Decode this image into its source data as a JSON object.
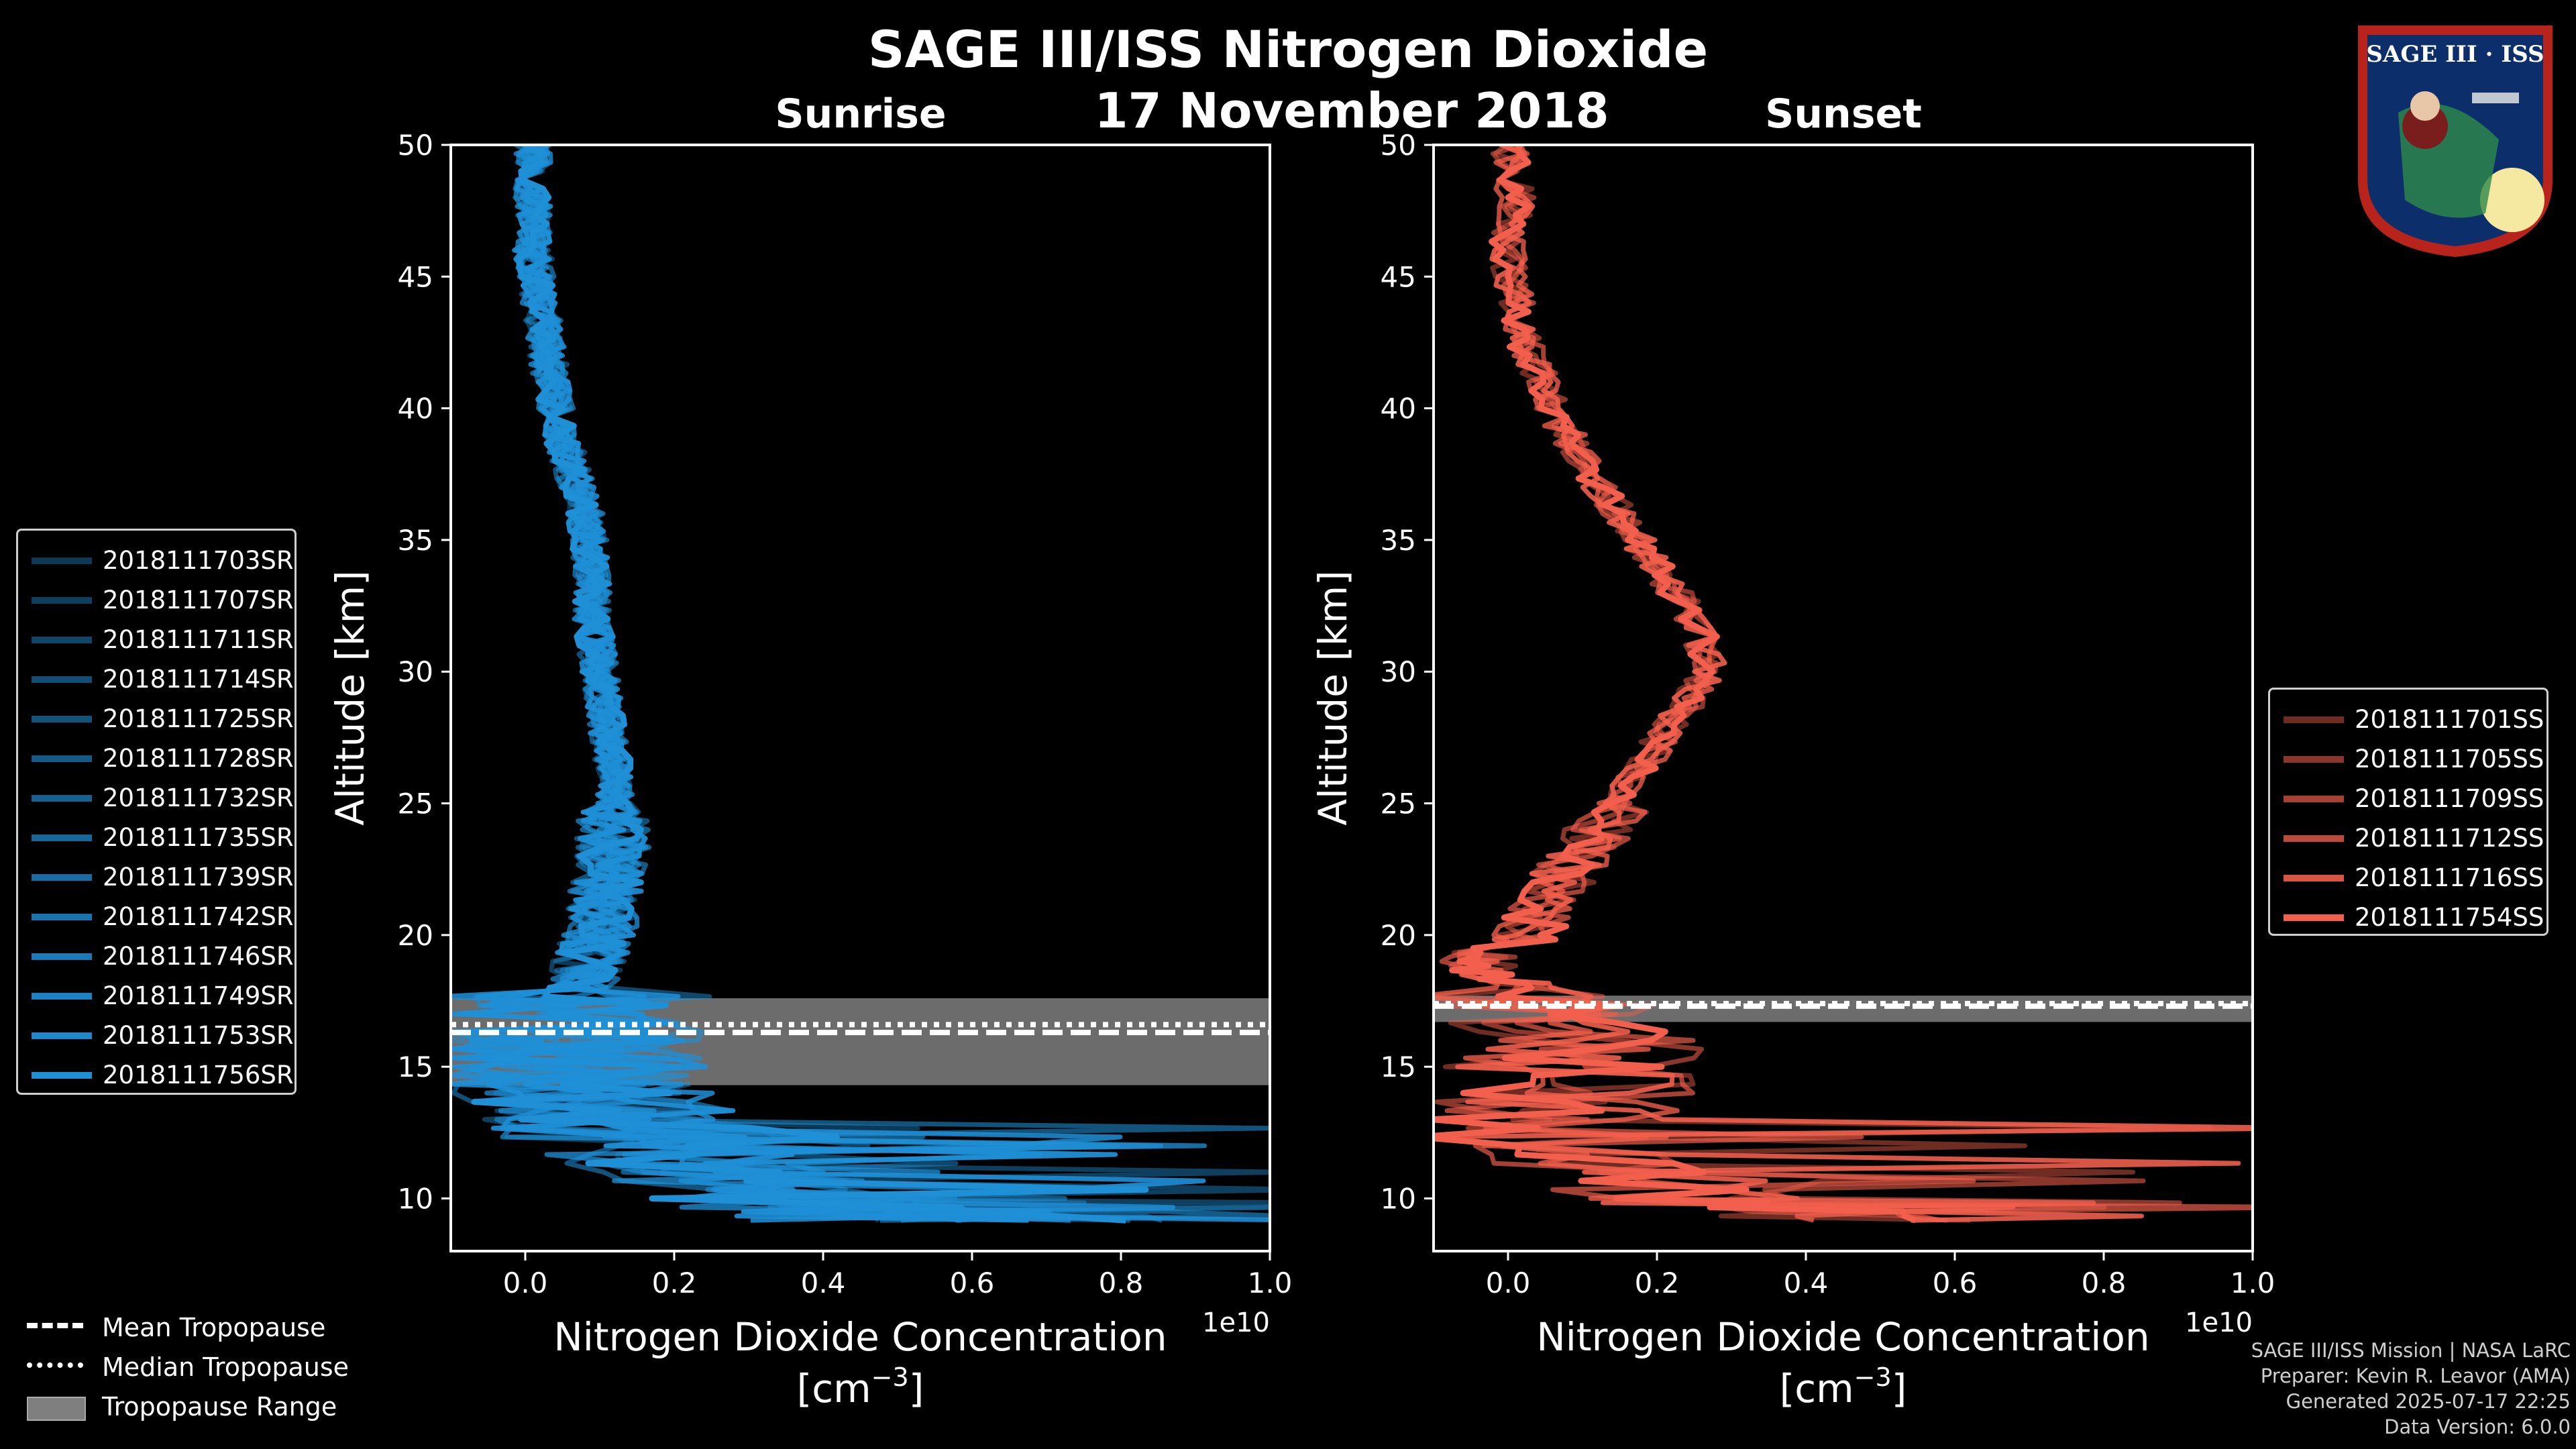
{
  "title": "SAGE III/ISS Nitrogen Dioxide",
  "date": "17 November 2018",
  "colors": {
    "sunrise": "#1f8fd6",
    "sunset": "#f25f4c",
    "tropo_band": "#7f7f7f"
  },
  "footer": {
    "line1": "SAGE III/ISS Mission | NASA LaRC",
    "line2": "Preparer: Kevin R. Leavor (AMA)",
    "line3": "Generated 2025-07-17 22:25",
    "line4": "Data Version: 6.0.0"
  },
  "badge": {
    "text": "SAGE III · ISS",
    "icon": "sage-iii-iss-mission-patch-icon"
  },
  "legend_tropo": [
    {
      "label": "Mean Tropopause",
      "style": "dashed"
    },
    {
      "label": "Median Tropopause",
      "style": "dotted"
    },
    {
      "label": "Tropopause Range",
      "style": "band"
    }
  ],
  "chart_data": [
    {
      "type": "line",
      "panel": "Sunrise",
      "title": "Sunrise",
      "xlabel": "Nitrogen Dioxide Concentration",
      "xlabel_units": "[cm",
      "xlabel_units_exp": "−3",
      "xlabel_units_end": "]",
      "xscale_label": "1e10",
      "ylabel": "Altitude [km]",
      "xlim": [
        -0.1,
        1.0
      ],
      "ylim": [
        8,
        50
      ],
      "xticks": [
        "0.0",
        "0.2",
        "0.4",
        "0.6",
        "0.8",
        "1.0"
      ],
      "xtick_values": [
        0.0,
        0.2,
        0.4,
        0.6,
        0.8,
        1.0
      ],
      "yticks": [
        "10",
        "15",
        "20",
        "25",
        "30",
        "35",
        "40",
        "45",
        "50"
      ],
      "ytick_values": [
        10,
        15,
        20,
        25,
        30,
        35,
        40,
        45,
        50
      ],
      "tropopause": {
        "mean": 16.3,
        "median": 16.6,
        "range": [
          14.3,
          17.6
        ]
      },
      "legend_position": "left",
      "profile": {
        "altitude": [
          50,
          48,
          46,
          44,
          42,
          40,
          38,
          36,
          34,
          32,
          30,
          28,
          26,
          24,
          22,
          20,
          18,
          16,
          14,
          12,
          10,
          9
        ],
        "concentration": [
          0.01,
          0.01,
          0.01,
          0.02,
          0.03,
          0.04,
          0.06,
          0.08,
          0.09,
          0.09,
          0.1,
          0.11,
          0.12,
          0.12,
          0.11,
          0.1,
          0.07,
          0.06,
          0.08,
          0.15,
          0.35,
          0.7
        ]
      },
      "series": [
        {
          "name": "2018111703SR"
        },
        {
          "name": "2018111707SR"
        },
        {
          "name": "2018111711SR"
        },
        {
          "name": "2018111714SR"
        },
        {
          "name": "2018111725SR"
        },
        {
          "name": "2018111728SR"
        },
        {
          "name": "2018111732SR"
        },
        {
          "name": "2018111735SR"
        },
        {
          "name": "2018111739SR"
        },
        {
          "name": "2018111742SR"
        },
        {
          "name": "2018111746SR"
        },
        {
          "name": "2018111749SR"
        },
        {
          "name": "2018111753SR"
        },
        {
          "name": "2018111756SR"
        }
      ]
    },
    {
      "type": "line",
      "panel": "Sunset",
      "title": "Sunset",
      "xlabel": "Nitrogen Dioxide Concentration",
      "xlabel_units": "[cm",
      "xlabel_units_exp": "−3",
      "xlabel_units_end": "]",
      "xscale_label": "1e10",
      "ylabel": "Altitude [km]",
      "xlim": [
        -0.1,
        1.0
      ],
      "ylim": [
        8,
        50
      ],
      "xticks": [
        "0.0",
        "0.2",
        "0.4",
        "0.6",
        "0.8",
        "1.0"
      ],
      "xtick_values": [
        0.0,
        0.2,
        0.4,
        0.6,
        0.8,
        1.0
      ],
      "yticks": [
        "10",
        "15",
        "20",
        "25",
        "30",
        "35",
        "40",
        "45",
        "50"
      ],
      "ytick_values": [
        10,
        15,
        20,
        25,
        30,
        35,
        40,
        45,
        50
      ],
      "tropopause": {
        "mean": 17.3,
        "median": 17.4,
        "range": [
          16.7,
          17.7
        ]
      },
      "legend_position": "right",
      "profile": {
        "altitude": [
          50,
          48,
          46,
          44,
          42,
          40,
          38,
          36,
          34,
          32,
          30,
          28,
          26,
          24,
          22,
          20,
          19,
          18,
          16,
          14,
          12,
          10,
          9
        ],
        "concentration": [
          0.0,
          0.01,
          0.0,
          0.01,
          0.03,
          0.06,
          0.1,
          0.15,
          0.2,
          0.25,
          0.27,
          0.22,
          0.17,
          0.12,
          0.07,
          0.03,
          -0.05,
          0.02,
          0.1,
          0.08,
          0.05,
          0.25,
          0.5
        ]
      },
      "series": [
        {
          "name": "2018111701SS"
        },
        {
          "name": "2018111705SS"
        },
        {
          "name": "2018111709SS"
        },
        {
          "name": "2018111712SS"
        },
        {
          "name": "2018111716SS"
        },
        {
          "name": "2018111754SS"
        }
      ]
    }
  ]
}
